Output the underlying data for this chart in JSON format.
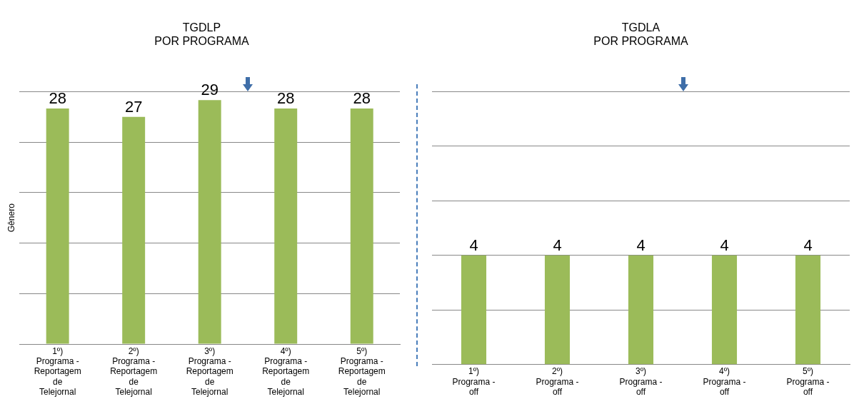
{
  "chart_data": [
    {
      "type": "bar",
      "title": "TGDLP\nPOR PROGRAMA",
      "ylabel": "Gênero",
      "categories": [
        "1º) Programa - Reportagem de Telejornal",
        "2º) Programa - Reportagem de Telejornal",
        "3º) Programa - Reportagem de Telejornal",
        "4º) Programa - Reportagem de Telejornal",
        "5º) Programa - Reportagem de Telejornal"
      ],
      "values": [
        28,
        27,
        29,
        28,
        28
      ],
      "color": "#9bbb59",
      "ylim": [
        0,
        30
      ],
      "yticks": [
        {
          "value": 0,
          "label": null
        },
        {
          "value": 6,
          "label": null
        },
        {
          "value": 12,
          "label": null
        },
        {
          "value": 18,
          "label": null
        },
        {
          "value": 24,
          "label": null
        },
        {
          "value": 30,
          "label": null
        }
      ],
      "data_labels": true,
      "grid": "y",
      "tick_labels": "x"
    },
    {
      "type": "bar",
      "title": "TGDLA\nPOR PROGRAMA",
      "categories": [
        "1º) Programa - off",
        "2º) Programa - off",
        "3º) Programa - off",
        "4º) Programa - off",
        "5º) Programa - off"
      ],
      "values": [
        4,
        4,
        4,
        4,
        4
      ],
      "color": "#9bbb59",
      "ylim": [
        0,
        10
      ],
      "yticks": [
        {
          "value": 0,
          "label": null
        },
        {
          "value": 2,
          "label": null
        },
        {
          "value": 4,
          "label": null
        },
        {
          "value": 6,
          "label": null
        },
        {
          "value": 8,
          "label": null
        },
        {
          "value": 10,
          "label": null
        }
      ],
      "data_labels": true,
      "grid": "y",
      "tick_labels": "x"
    }
  ]
}
